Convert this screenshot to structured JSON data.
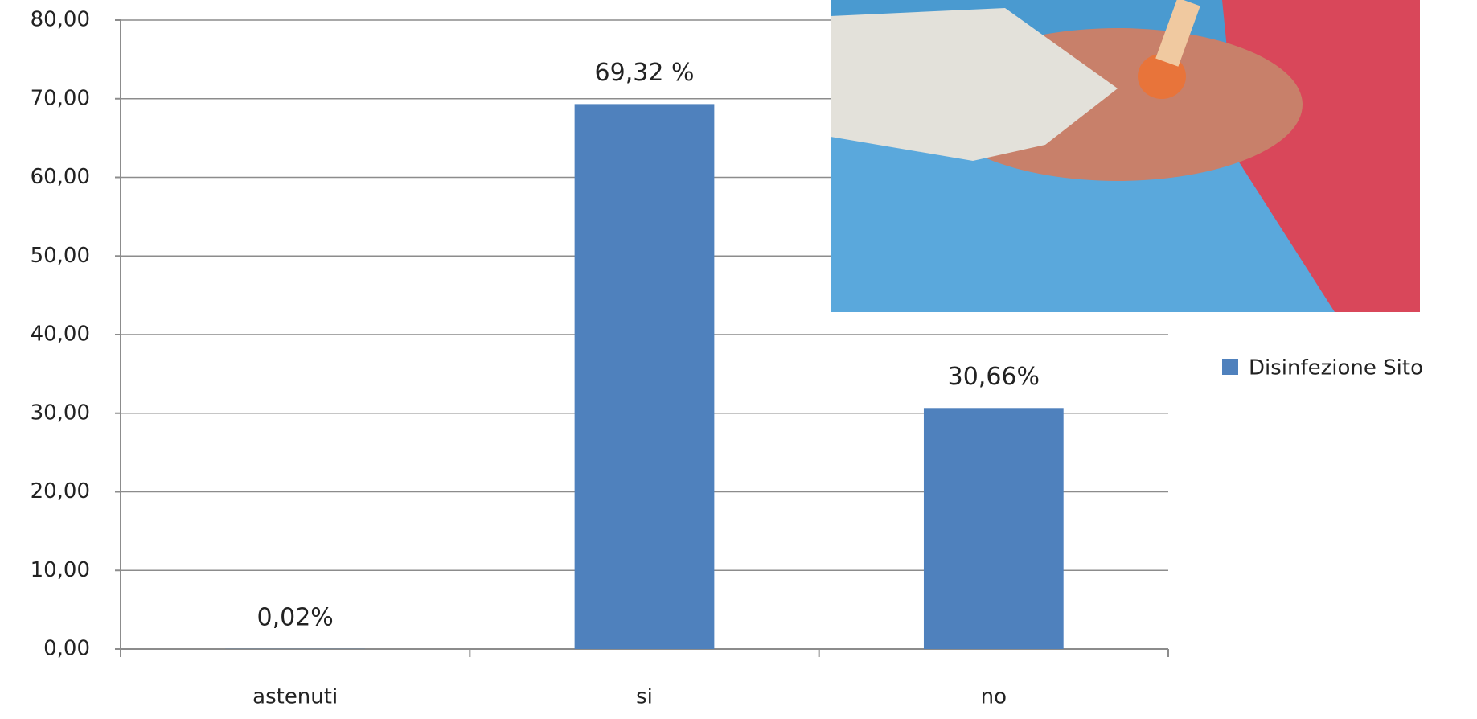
{
  "chart_data": {
    "type": "bar",
    "categories": [
      "astenuti",
      "si",
      "no"
    ],
    "series": [
      {
        "name": "Disinfezione Sito",
        "color": "#4f81bd",
        "values": [
          0.02,
          69.32,
          30.66
        ],
        "value_labels": [
          "0,02%",
          "69,32 %",
          "30,66%"
        ]
      }
    ],
    "ylim": [
      0,
      80
    ],
    "yticks": [
      {
        "value": 0,
        "label": "0,00"
      },
      {
        "value": 10,
        "label": "10,00"
      },
      {
        "value": 20,
        "label": "20,00"
      },
      {
        "value": 30,
        "label": "30,00"
      },
      {
        "value": 40,
        "label": "40,00"
      },
      {
        "value": 50,
        "label": "50,00"
      },
      {
        "value": 60,
        "label": "60,00"
      },
      {
        "value": 70,
        "label": "70,00"
      },
      {
        "value": 80,
        "label": "80,00"
      }
    ],
    "grid": true,
    "legend": "right"
  }
}
